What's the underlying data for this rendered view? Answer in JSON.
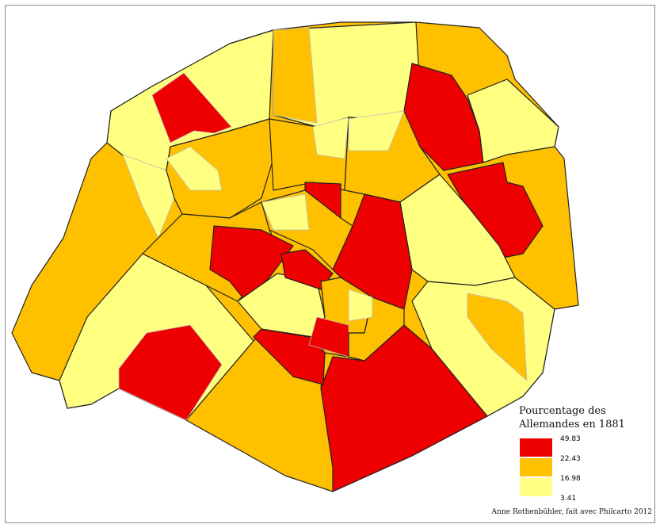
{
  "legend": {
    "title": "Pourcentage des Allemandes en 1881",
    "breaks": [
      49.83,
      22.43,
      16.98,
      3.41
    ],
    "colors": [
      "#ee0000",
      "#ffc000",
      "#ffff80"
    ]
  },
  "credit": "Anne Rothenbühler, fait avec Philcarto 2012"
}
